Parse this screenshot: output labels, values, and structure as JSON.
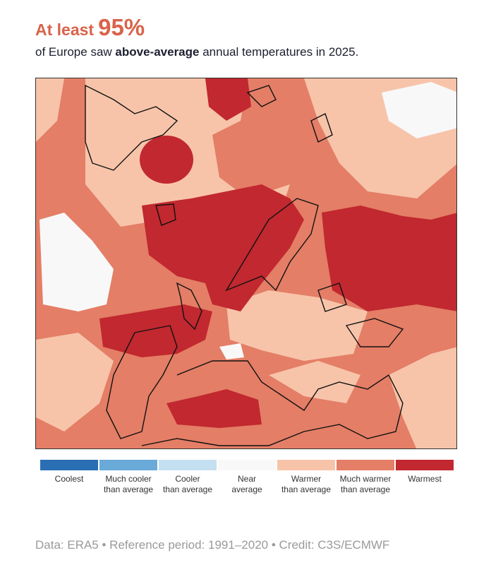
{
  "title": {
    "lead": "At least",
    "value": "95%"
  },
  "subtitle": {
    "pre": "of Europe saw ",
    "bold": "above-average",
    "post": " annual temperatures in 2025."
  },
  "colors": {
    "accent": "#d9634a",
    "coolest": "#2a6fb3",
    "much_cooler": "#6aaad8",
    "cooler": "#c4dff0",
    "near": "#f8f8f8",
    "warmer": "#f7c4aa",
    "much_warmer": "#e47e66",
    "warmest": "#c1282f"
  },
  "legend": [
    {
      "line1": "Coolest",
      "line2": "",
      "color": "#2a6fb3"
    },
    {
      "line1": "Much cooler",
      "line2": "than average",
      "color": "#6aaad8"
    },
    {
      "line1": "Cooler",
      "line2": "than average",
      "color": "#c4dff0"
    },
    {
      "line1": "Near",
      "line2": "average",
      "color": "#f8f8f8"
    },
    {
      "line1": "Warmer",
      "line2": "than average",
      "color": "#f7c4aa"
    },
    {
      "line1": "Much warmer",
      "line2": "than average",
      "color": "#e47e66"
    },
    {
      "line1": "Warmest",
      "line2": "",
      "color": "#c1282f"
    }
  ],
  "footer": "Data: ERA5 • Reference period: 1991–2020 • Credit: C3S/ECMWF"
}
